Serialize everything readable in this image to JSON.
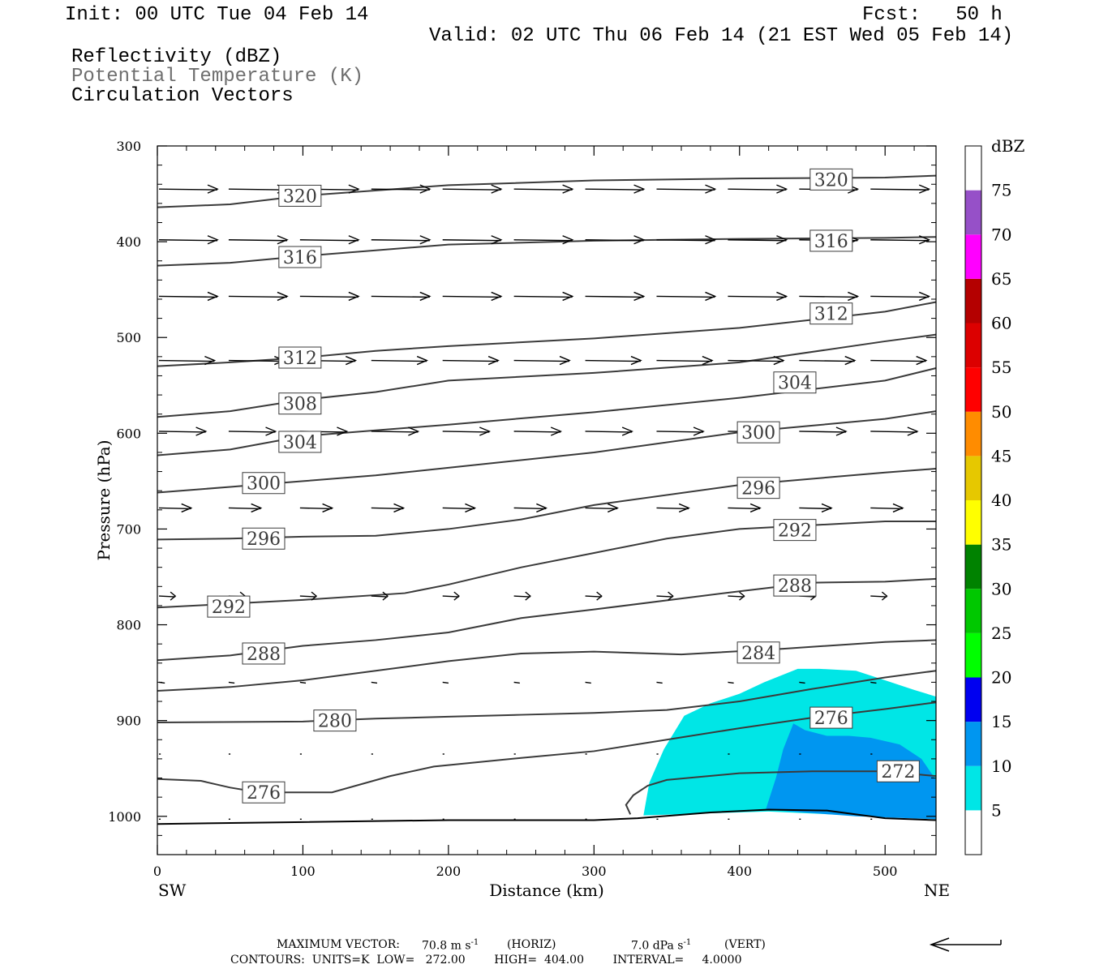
{
  "header": {
    "init": "Init: 00 UTC Tue 04 Feb 14",
    "fcst": "Fcst:   50 h",
    "valid": "Valid: 02 UTC Thu 06 Feb 14 (21 EST Wed 05 Feb 14)",
    "fields": [
      {
        "label": "Reflectivity (dBZ)",
        "color": "#000000"
      },
      {
        "label": "Potential Temperature (K)",
        "color": "#6e6e6e"
      },
      {
        "label": "Circulation Vectors",
        "color": "#000000"
      }
    ]
  },
  "footer": {
    "max_vector_label": "MAXIMUM VECTOR:",
    "max_horiz": "70.8 m s",
    "horiz_tag": "(HORIZ)",
    "max_vert": "7.0 dPa s",
    "vert_tag": "(VERT)",
    "exponent": "-1",
    "contours": "CONTOURS:  UNITS=K  LOW=   272.00        HIGH=  404.00        INTERVAL=     4.0000"
  },
  "chart_data": {
    "type": "cross-section",
    "xlabel": "Distance (km)",
    "ylabel": "Pressure (hPa)",
    "x_range": [
      0,
      535
    ],
    "y_range": [
      300,
      1040
    ],
    "y_scale": "linear-inverted",
    "x_ticks": [
      0,
      100,
      200,
      300,
      400,
      500
    ],
    "y_ticks": [
      300,
      400,
      500,
      600,
      700,
      800,
      900,
      1000
    ],
    "endpoints": {
      "left": "SW",
      "right": "NE"
    },
    "colorbar": {
      "title": "dBZ",
      "labels": [
        5,
        10,
        15,
        20,
        25,
        30,
        35,
        40,
        45,
        50,
        55,
        60,
        65,
        70,
        75
      ],
      "colors": [
        "#ffffff",
        "#00e6e6",
        "#0096f0",
        "#0000f0",
        "#00ff00",
        "#00c800",
        "#008200",
        "#ffff00",
        "#e6c800",
        "#ff8c00",
        "#ff0000",
        "#dc0000",
        "#b40000",
        "#ff00ff",
        "#9650c8",
        "#ffffff"
      ]
    },
    "theta_contours": [
      {
        "theta": 320,
        "points": [
          [
            0,
            364
          ],
          [
            50,
            361
          ],
          [
            100,
            352
          ],
          [
            200,
            341
          ],
          [
            300,
            336
          ],
          [
            400,
            334
          ],
          [
            500,
            333
          ],
          [
            535,
            331
          ]
        ]
      },
      {
        "theta": 316,
        "points": [
          [
            0,
            425
          ],
          [
            50,
            422
          ],
          [
            100,
            415
          ],
          [
            200,
            403
          ],
          [
            300,
            399
          ],
          [
            400,
            397
          ],
          [
            500,
            396
          ],
          [
            535,
            395
          ]
        ]
      },
      {
        "theta": 312,
        "points": [
          [
            0,
            530
          ],
          [
            50,
            526
          ],
          [
            100,
            521
          ],
          [
            150,
            514
          ],
          [
            200,
            509
          ],
          [
            300,
            501
          ],
          [
            400,
            490
          ],
          [
            500,
            473
          ],
          [
            535,
            463
          ]
        ]
      },
      {
        "theta": 308,
        "points": [
          [
            0,
            583
          ],
          [
            50,
            577
          ],
          [
            100,
            565
          ],
          [
            150,
            557
          ],
          [
            200,
            545
          ],
          [
            300,
            537
          ],
          [
            400,
            526
          ],
          [
            500,
            504
          ],
          [
            535,
            497
          ]
        ]
      },
      {
        "theta": 304,
        "points": [
          [
            0,
            623
          ],
          [
            50,
            617
          ],
          [
            100,
            603
          ],
          [
            150,
            597
          ],
          [
            200,
            591
          ],
          [
            300,
            578
          ],
          [
            400,
            563
          ],
          [
            500,
            545
          ],
          [
            535,
            532
          ]
        ]
      },
      {
        "theta": 300,
        "points": [
          [
            0,
            662
          ],
          [
            50,
            656
          ],
          [
            100,
            650
          ],
          [
            150,
            644
          ],
          [
            200,
            636
          ],
          [
            300,
            620
          ],
          [
            400,
            599
          ],
          [
            450,
            592
          ],
          [
            500,
            585
          ],
          [
            535,
            577
          ]
        ]
      },
      {
        "theta": 296,
        "points": [
          [
            0,
            711
          ],
          [
            50,
            710
          ],
          [
            100,
            708
          ],
          [
            150,
            707
          ],
          [
            200,
            700
          ],
          [
            250,
            690
          ],
          [
            300,
            675
          ],
          [
            400,
            654
          ],
          [
            500,
            641
          ],
          [
            535,
            637
          ]
        ]
      },
      {
        "theta": 292,
        "points": [
          [
            0,
            782
          ],
          [
            50,
            778
          ],
          [
            100,
            774
          ],
          [
            170,
            767
          ],
          [
            200,
            758
          ],
          [
            250,
            740
          ],
          [
            300,
            725
          ],
          [
            350,
            710
          ],
          [
            400,
            700
          ],
          [
            500,
            692
          ],
          [
            535,
            692
          ]
        ]
      },
      {
        "theta": 288,
        "points": [
          [
            0,
            837
          ],
          [
            50,
            832
          ],
          [
            100,
            822
          ],
          [
            150,
            816
          ],
          [
            200,
            808
          ],
          [
            250,
            793
          ],
          [
            300,
            784
          ],
          [
            400,
            765
          ],
          [
            450,
            756
          ],
          [
            500,
            755
          ],
          [
            535,
            752
          ]
        ]
      },
      {
        "theta": 284,
        "points": [
          [
            0,
            869
          ],
          [
            50,
            865
          ],
          [
            100,
            858
          ],
          [
            150,
            848
          ],
          [
            200,
            838
          ],
          [
            250,
            830
          ],
          [
            300,
            828
          ],
          [
            360,
            831
          ],
          [
            430,
            825
          ],
          [
            500,
            818
          ],
          [
            535,
            816
          ]
        ]
      },
      {
        "theta": 280,
        "points": [
          [
            0,
            902
          ],
          [
            100,
            901
          ],
          [
            150,
            898
          ],
          [
            200,
            896
          ],
          [
            250,
            894
          ],
          [
            300,
            892
          ],
          [
            350,
            889
          ],
          [
            400,
            880
          ],
          [
            450,
            867
          ],
          [
            500,
            855
          ],
          [
            535,
            848
          ]
        ]
      },
      {
        "theta": 276,
        "points": [
          [
            0,
            961
          ],
          [
            30,
            963
          ],
          [
            50,
            970
          ],
          [
            70,
            975
          ],
          [
            90,
            975
          ],
          [
            120,
            975
          ],
          [
            160,
            958
          ],
          [
            190,
            948
          ],
          [
            250,
            939
          ],
          [
            300,
            932
          ],
          [
            350,
            920
          ],
          [
            400,
            908
          ],
          [
            450,
            897
          ],
          [
            500,
            888
          ],
          [
            535,
            881
          ]
        ]
      },
      {
        "theta": 272,
        "points": [
          [
            325,
            998
          ],
          [
            322,
            988
          ],
          [
            327,
            978
          ],
          [
            337,
            968
          ],
          [
            350,
            962
          ],
          [
            400,
            955
          ],
          [
            450,
            953
          ],
          [
            500,
            953
          ],
          [
            535,
            958
          ]
        ]
      },
      {
        "theta": null,
        "points": [
          [
            0,
            1008
          ],
          [
            100,
            1006
          ],
          [
            200,
            1004
          ],
          [
            300,
            1004
          ],
          [
            330,
            1002
          ],
          [
            380,
            996
          ],
          [
            420,
            993
          ],
          [
            460,
            994
          ],
          [
            500,
            1002
          ],
          [
            535,
            1004
          ]
        ]
      }
    ],
    "contour_labels": [
      {
        "text": "320",
        "x": 98,
        "p": 352
      },
      {
        "text": "320",
        "x": 463,
        "p": 335
      },
      {
        "text": "316",
        "x": 98,
        "p": 416
      },
      {
        "text": "316",
        "x": 463,
        "p": 399
      },
      {
        "text": "312",
        "x": 98,
        "p": 521
      },
      {
        "text": "312",
        "x": 463,
        "p": 475
      },
      {
        "text": "308",
        "x": 98,
        "p": 569
      },
      {
        "text": "304",
        "x": 98,
        "p": 609
      },
      {
        "text": "304",
        "x": 438,
        "p": 547
      },
      {
        "text": "300",
        "x": 73,
        "p": 652
      },
      {
        "text": "300",
        "x": 413,
        "p": 599
      },
      {
        "text": "296",
        "x": 73,
        "p": 710
      },
      {
        "text": "296",
        "x": 413,
        "p": 657
      },
      {
        "text": "292",
        "x": 49,
        "p": 781
      },
      {
        "text": "292",
        "x": 438,
        "p": 701
      },
      {
        "text": "288",
        "x": 73,
        "p": 830
      },
      {
        "text": "288",
        "x": 438,
        "p": 759
      },
      {
        "text": "284",
        "x": 413,
        "p": 829
      },
      {
        "text": "280",
        "x": 122,
        "p": 900
      },
      {
        "text": "276",
        "x": 73,
        "p": 975
      },
      {
        "text": "276",
        "x": 463,
        "p": 897
      },
      {
        "text": "272",
        "x": 509,
        "p": 953
      }
    ],
    "reflectivity": [
      {
        "dbz_min": 5,
        "color": "#00e6e6",
        "points": [
          [
            334,
            999
          ],
          [
            338,
            965
          ],
          [
            348,
            930
          ],
          [
            362,
            895
          ],
          [
            380,
            882
          ],
          [
            400,
            872
          ],
          [
            417,
            860
          ],
          [
            440,
            846
          ],
          [
            455,
            846
          ],
          [
            480,
            848
          ],
          [
            500,
            858
          ],
          [
            520,
            868
          ],
          [
            535,
            875
          ],
          [
            535,
            1003
          ],
          [
            420,
            995
          ],
          [
            334,
            999
          ]
        ]
      },
      {
        "dbz_min": 10,
        "color": "#0096f0",
        "points": [
          [
            418,
            993
          ],
          [
            425,
            960
          ],
          [
            430,
            930
          ],
          [
            437,
            903
          ],
          [
            445,
            910
          ],
          [
            460,
            916
          ],
          [
            475,
            916
          ],
          [
            490,
            918
          ],
          [
            510,
            925
          ],
          [
            525,
            940
          ],
          [
            535,
            962
          ],
          [
            535,
            1003
          ],
          [
            480,
            1000
          ],
          [
            418,
            993
          ]
        ]
      }
    ],
    "vectors": {
      "rows": [
        {
          "p": 345,
          "u": 1.0
        },
        {
          "p": 398,
          "u": 1.0
        },
        {
          "p": 457,
          "u": 1.0
        },
        {
          "p": 524,
          "u": 0.95
        },
        {
          "p": 598,
          "u": 0.8
        },
        {
          "p": 678,
          "u": 0.55
        },
        {
          "p": 770,
          "u": 0.28
        },
        {
          "p": 860,
          "u": 0.1
        },
        {
          "p": 935,
          "u": 0.03
        },
        {
          "p": 1003,
          "u": 0.02
        }
      ],
      "scale_arrow_dir": "left"
    }
  }
}
